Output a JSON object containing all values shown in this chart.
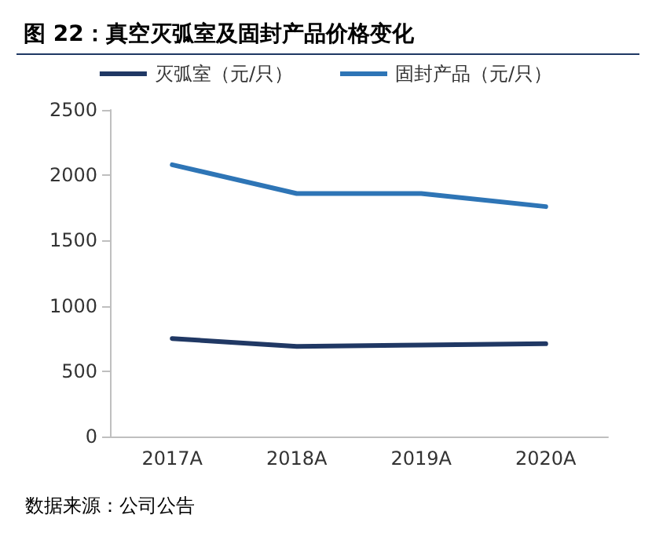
{
  "chart_data": {
    "type": "line",
    "title": "图 22：真空灭弧室及固封产品价格变化",
    "annotations": [
      "数据来源：公司公告"
    ],
    "categories": [
      "2017A",
      "2018A",
      "2019A",
      "2020A"
    ],
    "series": [
      {
        "name": "灭弧室（元/只）",
        "color": "#203864",
        "values": [
          750,
          690,
          700,
          710
        ]
      },
      {
        "name": "固封产品（元/只）",
        "color": "#2e75b6",
        "values": [
          2080,
          1860,
          1860,
          1760
        ]
      }
    ],
    "ylim": [
      0,
      2500
    ],
    "yticks": [
      0,
      500,
      1000,
      1500,
      2000,
      2500
    ],
    "grid": false,
    "legend": "top",
    "marker": "none",
    "line_style": "solid"
  }
}
